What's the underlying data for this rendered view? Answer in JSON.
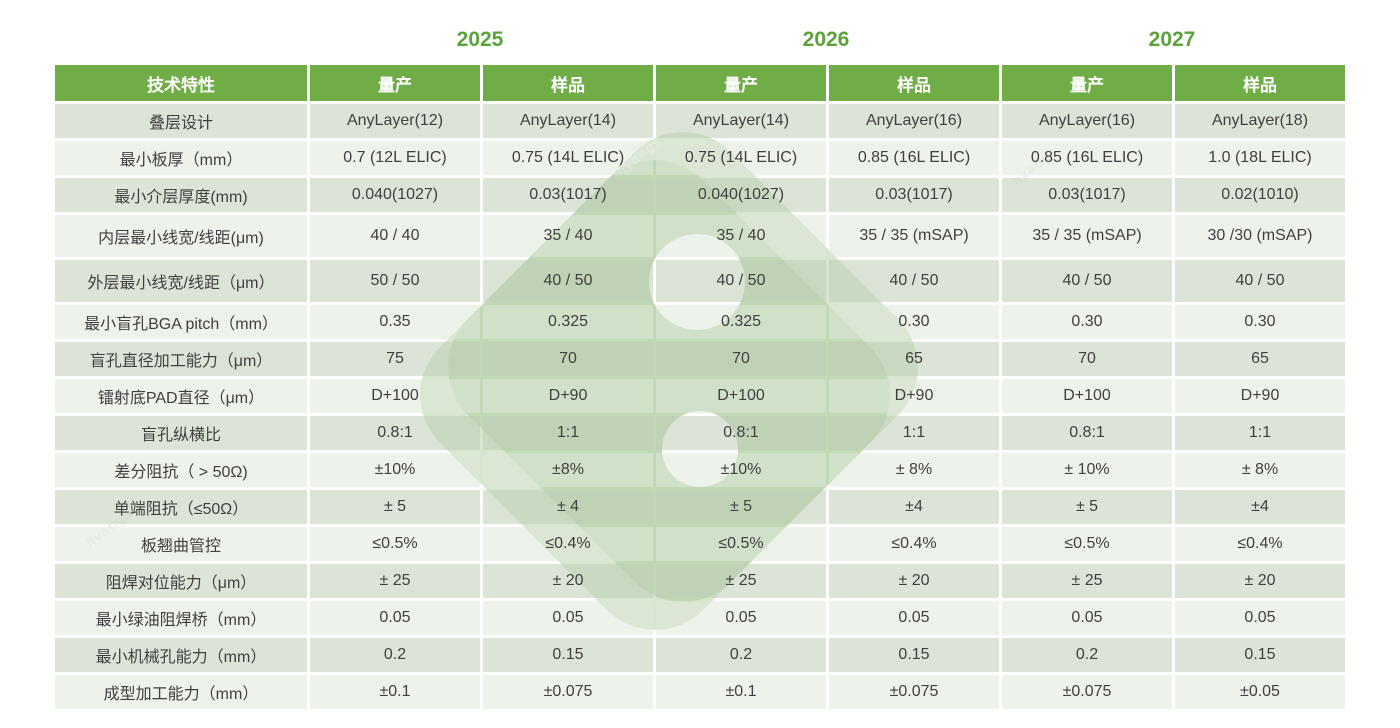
{
  "years": [
    {
      "label": "2025"
    },
    {
      "label": "2026"
    },
    {
      "label": "2027"
    }
  ],
  "table": {
    "feature_header": "技术特性",
    "col_headers": [
      "量产",
      "样品",
      "量产",
      "样品",
      "量产",
      "样品"
    ],
    "rows": [
      {
        "label": "叠层设计",
        "values": [
          "AnyLayer(12)",
          "AnyLayer(14)",
          "AnyLayer(14)",
          "AnyLayer(16)",
          "AnyLayer(16)",
          "AnyLayer(18)"
        ]
      },
      {
        "label": "最小板厚（mm）",
        "values": [
          "0.7 (12L ELIC)",
          "0.75 (14L ELIC)",
          "0.75 (14L ELIC)",
          "0.85 (16L ELIC)",
          "0.85 (16L ELIC)",
          "1.0 (18L ELIC)"
        ]
      },
      {
        "label": "最小介层厚度(mm)",
        "values": [
          "0.040(1027)",
          "0.03(1017)",
          "0.040(1027)",
          "0.03(1017)",
          "0.03(1017)",
          "0.02(1010)"
        ]
      },
      {
        "label": "内层最小线宽/线距(μm)",
        "values": [
          "40 / 40",
          "35 / 40",
          "35 / 40",
          "35 / 35 (mSAP)",
          "35 / 35 (mSAP)",
          "30 /30 (mSAP)"
        ]
      },
      {
        "label": "外层最小线宽/线距（μm）",
        "values": [
          "50 / 50",
          "40 / 50",
          "40 / 50",
          "40 / 50",
          "40 / 50",
          "40 / 50"
        ]
      },
      {
        "label": "最小盲孔BGA pitch（mm）",
        "values": [
          "0.35",
          "0.325",
          "0.325",
          "0.30",
          "0.30",
          "0.30"
        ]
      },
      {
        "label": "盲孔直径加工能力（μm）",
        "values": [
          "75",
          "70",
          "70",
          "65",
          "70",
          "65"
        ]
      },
      {
        "label": "镭射底PAD直径（μm）",
        "values": [
          "D+100",
          "D+90",
          "D+100",
          "D+90",
          "D+100",
          "D+90"
        ]
      },
      {
        "label": "盲孔纵横比",
        "values": [
          "0.8:1",
          "1:1",
          "0.8:1",
          "1:1",
          "0.8:1",
          "1:1"
        ]
      },
      {
        "label": "差分阻抗（ > 50Ω)",
        "values": [
          "±10%",
          "±8%",
          "±10%",
          "± 8%",
          "± 10%",
          "± 8%"
        ]
      },
      {
        "label": "单端阻抗（≤50Ω）",
        "values": [
          "± 5",
          "± 4",
          "± 5",
          "±4",
          "± 5",
          "±4"
        ]
      },
      {
        "label": "板翘曲管控",
        "values": [
          "≤0.5%",
          "≤0.4%",
          "≤0.5%",
          "≤0.4%",
          "≤0.5%",
          "≤0.4%"
        ]
      },
      {
        "label": "阻焊对位能力（μm）",
        "values": [
          "± 25",
          "± 20",
          "± 25",
          "± 20",
          "± 25",
          "± 20"
        ]
      },
      {
        "label": "最小绿油阻焊桥（mm）",
        "values": [
          "0.05",
          "0.05",
          "0.05",
          "0.05",
          "0.05",
          "0.05"
        ]
      },
      {
        "label": "最小机械孔能力（mm）",
        "values": [
          "0.2",
          "0.15",
          "0.2",
          "0.15",
          "0.2",
          "0.15"
        ]
      },
      {
        "label": "成型加工能力（mm）",
        "values": [
          "±0.1",
          "±0.075",
          "±0.1",
          "±0.075",
          "±0.075",
          "±0.05"
        ]
      }
    ]
  },
  "watermark": {
    "text": "hyangs"
  },
  "colors": {
    "header_bg": "#70ad47",
    "year_text": "#5aa33a",
    "row_dark": "#dce4d7",
    "row_light": "#eef2ec",
    "cell_text": "#404040",
    "watermark_green": "#d7e6cf"
  }
}
